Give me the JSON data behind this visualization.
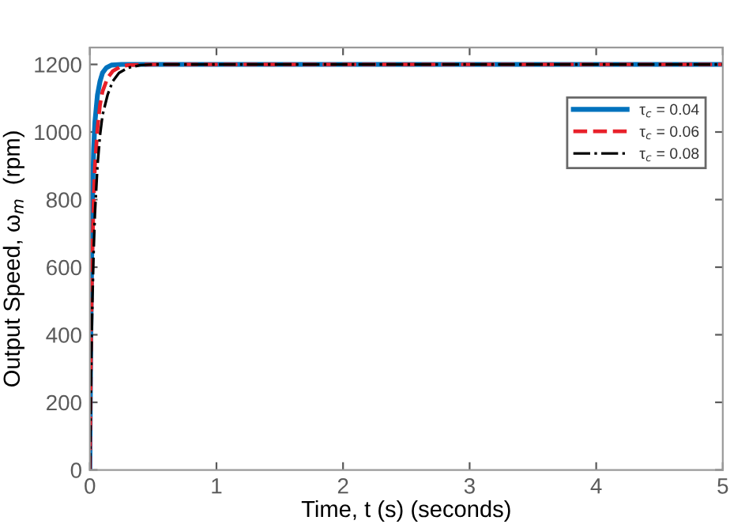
{
  "chart_data": {
    "type": "line",
    "xlabel": "Time, t (s) (seconds)",
    "ylabel": "Output Speed, ω$_{m}$  (rpm)",
    "xlim": [
      0,
      5
    ],
    "xticks": [
      0,
      1,
      2,
      3,
      4,
      5
    ],
    "ylim": [
      0,
      1250
    ],
    "yticks": [
      0,
      200,
      400,
      600,
      800,
      1000,
      1200
    ],
    "grid": false,
    "legend": "top right",
    "marker": "none",
    "series": [
      {
        "name": "τ$_{c}$ = 0.04",
        "color": "#0072bd",
        "line_style": "solid",
        "x": [
          0,
          0.005,
          0.01,
          0.02,
          0.03,
          0.04,
          0.06,
          0.08,
          0.1,
          0.13,
          0.17,
          0.25,
          0.5,
          1,
          5
        ],
        "values": [
          0,
          300,
          500,
          800,
          950,
          1030,
          1110,
          1150,
          1175,
          1190,
          1198,
          1200,
          1200,
          1200,
          1200
        ]
      },
      {
        "name": "τ$_{c}$ = 0.06",
        "color": "#e8202a",
        "line_style": "dashed",
        "x": [
          0,
          0.005,
          0.01,
          0.02,
          0.03,
          0.04,
          0.06,
          0.08,
          0.1,
          0.14,
          0.18,
          0.24,
          0.3,
          0.5,
          1,
          5
        ],
        "values": [
          0,
          200,
          400,
          650,
          800,
          900,
          1010,
          1080,
          1120,
          1160,
          1180,
          1193,
          1198,
          1200,
          1200,
          1200
        ]
      },
      {
        "name": "τ$_{c}$ = 0.08",
        "color": "#000000",
        "line_style": "dashdot",
        "x": [
          0,
          0.005,
          0.01,
          0.02,
          0.03,
          0.04,
          0.06,
          0.08,
          0.1,
          0.14,
          0.18,
          0.23,
          0.3,
          0.4,
          0.5,
          1,
          5
        ],
        "values": [
          0,
          150,
          300,
          500,
          650,
          760,
          900,
          990,
          1050,
          1110,
          1150,
          1175,
          1190,
          1198,
          1200,
          1200,
          1200
        ]
      }
    ]
  }
}
